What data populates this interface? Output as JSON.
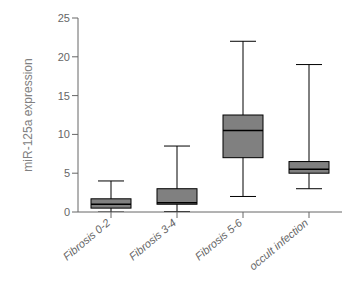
{
  "chart_data": {
    "type": "box",
    "categories": [
      "Fibrosis 0-2",
      "Fibrosis 3-4",
      "Fibrosis 5-6",
      "occult infection"
    ],
    "whisker_low": [
      0.0,
      0.05,
      2.0,
      3.0
    ],
    "q1": [
      0.5,
      1.0,
      7.0,
      5.0
    ],
    "median": [
      1.0,
      1.2,
      10.5,
      5.5
    ],
    "q3": [
      1.7,
      3.0,
      12.5,
      6.5
    ],
    "whisker_high": [
      4.0,
      8.5,
      22.0,
      19.0
    ],
    "ylabel": "miR-125a expression",
    "ylim": [
      0,
      25
    ],
    "yticks": [
      0,
      5,
      10,
      15,
      20,
      25
    ],
    "color": "#808080"
  }
}
